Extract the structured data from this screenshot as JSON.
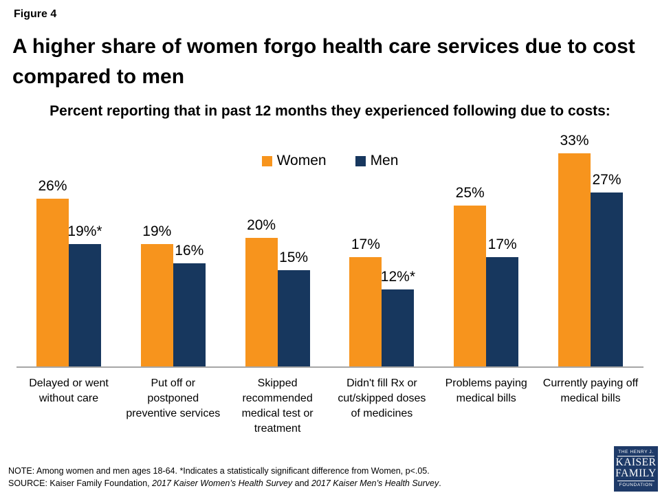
{
  "header": {
    "figure_label": "Figure 4",
    "title": "A higher share of women forgo health care services due to cost compared to men",
    "subtitle": "Percent reporting that in past 12 months they experienced following due to costs:"
  },
  "chart_data": {
    "type": "bar",
    "title": "Percent reporting that in past 12 months they experienced following due to costs:",
    "categories": [
      "Delayed or went\nwithout care",
      "Put off or\npostponed\npreventive services",
      "Skipped\nrecommended\nmedical test or\ntreatment",
      "Didn't fill Rx or\ncut/skipped doses\nof medicines",
      "Problems paying\nmedical bills",
      "Currently paying off\nmedical bills"
    ],
    "series": [
      {
        "name": "Women",
        "color": "#F7941D",
        "values": [
          26,
          19,
          20,
          17,
          25,
          33
        ],
        "labels": [
          "26%",
          "19%",
          "20%",
          "17%",
          "25%",
          "33%"
        ]
      },
      {
        "name": "Men",
        "color": "#17375E",
        "values": [
          19,
          16,
          15,
          12,
          17,
          27
        ],
        "labels": [
          "19%*",
          "16%",
          "15%",
          "12%*",
          "17%",
          "27%"
        ]
      }
    ],
    "ylim": [
      0,
      35
    ],
    "xlabel": "",
    "ylabel": "",
    "grid": false,
    "legend_position": "top-center",
    "axis_color": "#A6A6A6"
  },
  "footer": {
    "note": "NOTE:  Among  women  and men  ages 18-64. *Indicates a statistically significant difference from Women,  p<.05.",
    "source_prefix": "SOURCE:  Kaiser Family Foundation, ",
    "source_italic1": "2017 Kaiser Women’s Health Survey",
    "source_and": " and ",
    "source_italic2": "2017 Kaiser Men’s Health Survey",
    "source_period": "."
  },
  "logo": {
    "line1": "THE HENRY J.",
    "line2": "KAISER",
    "line3": "FAMILY",
    "line4": "FOUNDATION"
  }
}
